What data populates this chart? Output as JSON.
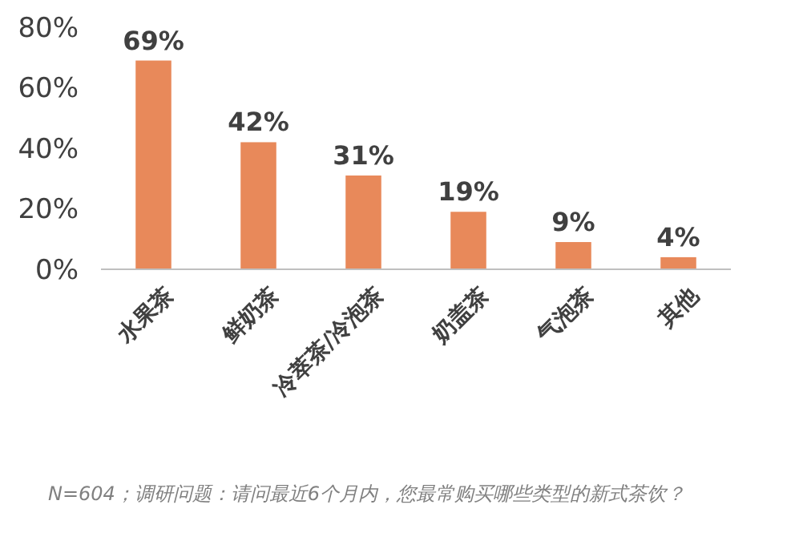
{
  "chart_data": {
    "type": "bar",
    "categories": [
      "水果茶",
      "鲜奶茶",
      "冷萃茶/冷泡茶",
      "奶盖茶",
      "气泡茶",
      "其他"
    ],
    "values": [
      69,
      42,
      31,
      19,
      9,
      4
    ],
    "value_labels": [
      "69%",
      "42%",
      "31%",
      "19%",
      "9%",
      "4%"
    ],
    "color": "#e8895a",
    "ylim": [
      0,
      80
    ],
    "yticks": [
      {
        "value": 0,
        "label": "0%"
      },
      {
        "value": 20,
        "label": "20%"
      },
      {
        "value": 40,
        "label": "40%"
      },
      {
        "value": 60,
        "label": "60%"
      },
      {
        "value": 80,
        "label": "80%"
      }
    ],
    "grid": false,
    "annotations": [
      "N=604；调研问题：请问最近6个月内，您最常购买哪些类型的新式茶饮？"
    ]
  }
}
